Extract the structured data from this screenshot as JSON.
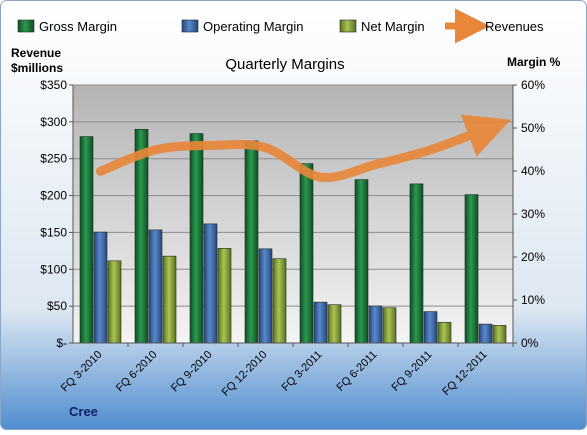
{
  "chart_data": {
    "type": "bar",
    "title": "Quarterly Margins",
    "source_label": "Cree",
    "left_axis": {
      "label_line1": "Revenue",
      "label_line2": "$millions",
      "ylim": [
        0,
        350
      ],
      "ticks": [
        0,
        50,
        100,
        150,
        200,
        250,
        300,
        350
      ],
      "tick_labels": [
        "$-",
        "$50",
        "$100",
        "$150",
        "$200",
        "$250",
        "$300",
        "$350"
      ]
    },
    "right_axis": {
      "label": "Margin %",
      "ylim": [
        0,
        60
      ],
      "ticks": [
        0,
        10,
        20,
        30,
        40,
        50,
        60
      ],
      "tick_labels": [
        "0%",
        "10%",
        "20%",
        "30%",
        "40%",
        "50%",
        "60%"
      ]
    },
    "grid": true,
    "legend_position": "top",
    "categories": [
      "FQ 3-2010",
      "FQ 6-2010",
      "FQ 9-2010",
      "FQ 12-2010",
      "FQ 3-2011",
      "FQ 6-2011",
      "FQ 9-2011",
      "FQ 12-2011"
    ],
    "series": [
      {
        "name": "Gross Margin",
        "type": "bar",
        "axis": "right",
        "color": "#1e7a3c",
        "values": [
          48,
          49.7,
          48.7,
          47,
          41.7,
          38,
          37,
          34.5
        ]
      },
      {
        "name": "Operating Margin",
        "type": "bar",
        "axis": "right",
        "color": "#3d6cb3",
        "values": [
          25.8,
          26.3,
          27.7,
          21.9,
          9.5,
          8.6,
          7.3,
          4.4
        ]
      },
      {
        "name": "Net Margin",
        "type": "bar",
        "axis": "right",
        "color": "#8fa83a",
        "values": [
          19.1,
          20.2,
          22,
          19.6,
          8.9,
          8.2,
          4.8,
          4.1
        ]
      },
      {
        "name": "Revenues",
        "type": "line",
        "axis": "left",
        "color": "#e8873a",
        "values": [
          233,
          262,
          268,
          265,
          225,
          242,
          262,
          290
        ]
      }
    ]
  }
}
